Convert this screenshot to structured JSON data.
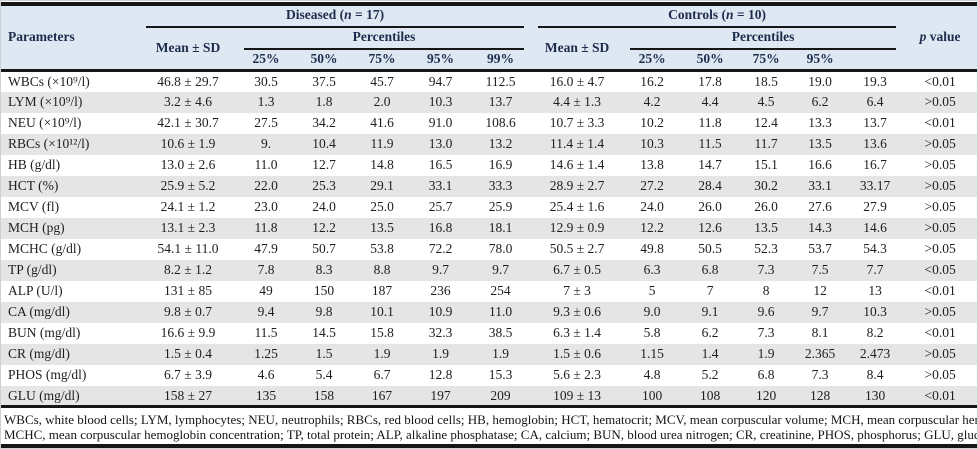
{
  "table": {
    "header": {
      "parameters": "Parameters",
      "diseased_pre": "Diseased (",
      "diseased_it": "n",
      "diseased_post": " = 17)",
      "controls_pre": "Controls (",
      "controls_it": "n",
      "controls_post": " = 10)",
      "mean_sd": "Mean ± SD",
      "percentiles": "Percentiles",
      "diseased_pcts": [
        "25%",
        "50%",
        "75%",
        "95%",
        "99%"
      ],
      "controls_pcts": [
        "25%",
        "50%",
        "75%",
        "95%",
        ""
      ],
      "p_it": "p",
      "p_post": " value"
    },
    "rows": [
      {
        "param": "WBCs (×10⁹/l)",
        "d_mean": "46.8 ± 29.7",
        "d_p": [
          "30.5",
          "37.5",
          "45.7",
          "94.7",
          "112.5"
        ],
        "c_mean": "16.0 ± 4.7",
        "c_p": [
          "16.2",
          "17.8",
          "18.5",
          "19.0",
          "19.3"
        ],
        "p": "<0.01"
      },
      {
        "param": "LYM (×10⁹/l)",
        "d_mean": "3.2 ± 4.6",
        "d_p": [
          "1.3",
          "1.8",
          "2.0",
          "10.3",
          "13.7"
        ],
        "c_mean": "4.4 ± 1.3",
        "c_p": [
          "4.2",
          "4.4",
          "4.5",
          "6.2",
          "6.4"
        ],
        "p": ">0.05"
      },
      {
        "param": "NEU (×10⁹/l)",
        "d_mean": "42.1 ± 30.7",
        "d_p": [
          "27.5",
          "34.2",
          "41.6",
          "91.0",
          "108.6"
        ],
        "c_mean": "10.7 ± 3.3",
        "c_p": [
          "10.2",
          "11.8",
          "12.4",
          "13.3",
          "13.7"
        ],
        "p": "<0.01"
      },
      {
        "param": "RBCs (×10¹²/l)",
        "d_mean": "10.6 ± 1.9",
        "d_p": [
          "9.",
          "10.4",
          "11.9",
          "13.0",
          "13.2"
        ],
        "c_mean": "11.4 ± 1.4",
        "c_p": [
          "10.3",
          "11.5",
          "11.7",
          "13.5",
          "13.6"
        ],
        "p": ">0.05"
      },
      {
        "param": "HB (g/dl)",
        "d_mean": "13.0 ± 2.6",
        "d_p": [
          "11.0",
          "12.7",
          "14.8",
          "16.5",
          "16.9"
        ],
        "c_mean": "14.6 ± 1.4",
        "c_p": [
          "13.8",
          "14.7",
          "15.1",
          "16.6",
          "16.7"
        ],
        "p": ">0.05"
      },
      {
        "param": "HCT (%)",
        "d_mean": "25.9 ± 5.2",
        "d_p": [
          "22.0",
          "25.3",
          "29.1",
          "33.1",
          "33.3"
        ],
        "c_mean": "28.9 ± 2.7",
        "c_p": [
          "27.2",
          "28.4",
          "30.2",
          "33.1",
          "33.17"
        ],
        "p": ">0.05"
      },
      {
        "param": "MCV (fl)",
        "d_mean": "24.1 ± 1.2",
        "d_p": [
          "23.0",
          "24.0",
          "25.0",
          "25.7",
          "25.9"
        ],
        "c_mean": "25.4 ± 1.6",
        "c_p": [
          "24.0",
          "26.0",
          "26.0",
          "27.6",
          "27.9"
        ],
        "p": ">0.05"
      },
      {
        "param": "MCH (pg)",
        "d_mean": "13.1 ± 2.3",
        "d_p": [
          "11.8",
          "12.2",
          "13.5",
          "16.8",
          "18.1"
        ],
        "c_mean": "12.9 ± 0.9",
        "c_p": [
          "12.2",
          "12.6",
          "13.5",
          "14.3",
          "14.6"
        ],
        "p": ">0.05"
      },
      {
        "param": "MCHC (g/dl)",
        "d_mean": "54.1 ± 11.0",
        "d_p": [
          "47.9",
          "50.7",
          "53.8",
          "72.2",
          "78.0"
        ],
        "c_mean": "50.5 ± 2.7",
        "c_p": [
          "49.8",
          "50.5",
          "52.3",
          "53.7",
          "54.3"
        ],
        "p": ">0.05"
      },
      {
        "param": "TP (g/dl)",
        "d_mean": "8.2 ± 1.2",
        "d_p": [
          "7.8",
          "8.3",
          "8.8",
          "9.7",
          "9.7"
        ],
        "c_mean": "6.7 ± 0.5",
        "c_p": [
          "6.3",
          "6.8",
          "7.3",
          "7.5",
          "7.7"
        ],
        "p": "<0.05"
      },
      {
        "param": "ALP (U/l)",
        "d_mean": "131 ± 85",
        "d_p": [
          "49",
          "150",
          "187",
          "236",
          "254"
        ],
        "c_mean": "7 ± 3",
        "c_p": [
          "5",
          "7",
          "8",
          "12",
          "13"
        ],
        "p": "<0.01"
      },
      {
        "param": "CA (mg/dl)",
        "d_mean": "9.8 ± 0.7",
        "d_p": [
          "9.4",
          "9.8",
          "10.1",
          "10.9",
          "11.0"
        ],
        "c_mean": "9.3 ± 0.6",
        "c_p": [
          "9.0",
          "9.1",
          "9.6",
          "9.7",
          "10.3"
        ],
        "p": ">0.05"
      },
      {
        "param": "BUN (mg/dl)",
        "d_mean": "16.6 ± 9.9",
        "d_p": [
          "11.5",
          "14.5",
          "15.8",
          "32.3",
          "38.5"
        ],
        "c_mean": "6.3 ± 1.4",
        "c_p": [
          "5.8",
          "6.2",
          "7.3",
          "8.1",
          "8.2"
        ],
        "p": "<0.01"
      },
      {
        "param": "CR (mg/dl)",
        "d_mean": "1.5 ± 0.4",
        "d_p": [
          "1.25",
          "1.5",
          "1.9",
          "1.9",
          "1.9"
        ],
        "c_mean": "1.5 ± 0.6",
        "c_p": [
          "1.15",
          "1.4",
          "1.9",
          "2.365",
          "2.473"
        ],
        "p": ">0.05"
      },
      {
        "param": "PHOS (mg/dl)",
        "d_mean": "6.7 ± 3.9",
        "d_p": [
          "4.6",
          "5.4",
          "6.7",
          "12.8",
          "15.3"
        ],
        "c_mean": "5.6 ± 2.3",
        "c_p": [
          "4.8",
          "5.2",
          "6.8",
          "7.3",
          "8.4"
        ],
        "p": ">0.05"
      },
      {
        "param": "GLU (mg/dl)",
        "d_mean": "158 ± 27",
        "d_p": [
          "135",
          "158",
          "167",
          "197",
          "209"
        ],
        "c_mean": "109 ± 13",
        "c_p": [
          "100",
          "108",
          "120",
          "128",
          "130"
        ],
        "p": "<0.01"
      }
    ]
  },
  "footnote": {
    "line1": "WBCs, white blood cells; LYM, lymphocytes; NEU, neutrophils; RBCs, red blood cells; HB, hemoglobin; HCT, hematocrit; MCV, mean corpuscular volume; MCH, mean corpuscular hemoglobin;",
    "line2": "MCHC, mean corpuscular hemoglobin concentration; TP, total protein; ALP, alkaline phosphatase; CA, calcium; BUN, blood urea nitrogen; CR, creatinine, PHOS, phosphorus; GLU, glucose."
  },
  "colors": {
    "header_bg": "#dee8f3",
    "stripe": "#e5e5e5",
    "rule": "#161616",
    "header_text": "#1d2c4c"
  }
}
